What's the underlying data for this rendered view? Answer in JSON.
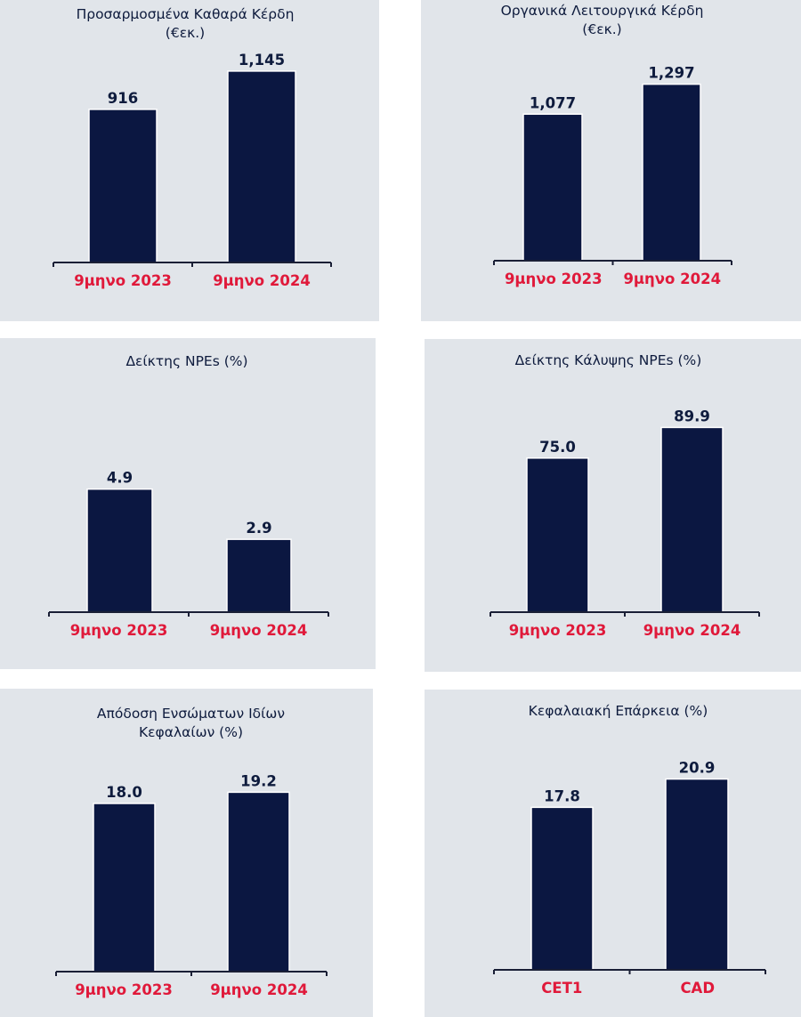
{
  "colors": {
    "panel_bg": "#e1e5ea",
    "bar": "#0b1741",
    "bar_outline": "#ffffff",
    "axis": "#1a1f36",
    "category_label": "#e0193a",
    "value_label": "#0e1b3d",
    "title": "#0e1b3d"
  },
  "chart_data": [
    {
      "type": "bar",
      "title": "Προσαρμοσμένα Καθαρά Κέρδη (€εκ.)",
      "title_lines": [
        "Προσαρμοσμένα Καθαρά Κέρδη",
        "(€εκ.)"
      ],
      "categories": [
        "9μηνο 2023",
        "9μηνο 2024"
      ],
      "values": [
        916,
        1145
      ],
      "value_labels": [
        "916",
        "1,145"
      ],
      "xlabel": "",
      "ylabel": "",
      "ylim": [
        0,
        1400
      ],
      "grid": false
    },
    {
      "type": "bar",
      "title": "Οργανικά Λειτουργικά Κέρδη (€εκ.)",
      "title_lines": [
        "Οργανικά Λειτουργικά Κέρδη",
        "(€εκ.)"
      ],
      "categories": [
        "9μηνο 2023",
        "9μηνο 2024"
      ],
      "values": [
        1077,
        1297
      ],
      "value_labels": [
        "1,077",
        "1,297"
      ],
      "xlabel": "",
      "ylabel": "",
      "ylim": [
        0,
        1700
      ],
      "grid": false
    },
    {
      "type": "bar",
      "title": "Δείκτης NPEs (%)",
      "title_lines": [
        "Δείκτης NPEs (%)"
      ],
      "categories": [
        "9μηνο 2023",
        "9μηνο 2024"
      ],
      "values": [
        4.9,
        2.9
      ],
      "value_labels": [
        "4.9",
        "2.9"
      ],
      "xlabel": "",
      "ylabel": "",
      "ylim": [
        0,
        9
      ],
      "grid": false
    },
    {
      "type": "bar",
      "title": "Δείκτης Κάλυψης NPEs (%)",
      "title_lines": [
        "Δείκτης Κάλυψης NPEs (%)"
      ],
      "categories": [
        "9μηνο 2023",
        "9μηνο 2024"
      ],
      "values": [
        75.0,
        89.9
      ],
      "value_labels": [
        "75.0",
        "89.9"
      ],
      "xlabel": "",
      "ylabel": "",
      "ylim": [
        0,
        110
      ],
      "grid": false
    },
    {
      "type": "bar",
      "title": "Απόδοση Ενσώματων Ιδίων Κεφαλαίων (%)",
      "title_lines": [
        "Απόδοση Ενσώματων Ιδίων",
        "Κεφαλαίων (%)"
      ],
      "categories": [
        "9μηνο 2023",
        "9μηνο 2024"
      ],
      "values": [
        18.0,
        19.2
      ],
      "value_labels": [
        "18.0",
        "19.2"
      ],
      "xlabel": "",
      "ylabel": "",
      "ylim": [
        0,
        22
      ],
      "grid": false
    },
    {
      "type": "bar",
      "title": "Κεφαλαιακή Επάρκεια (%)",
      "title_lines": [
        "Κεφαλαιακή Επάρκεια (%)"
      ],
      "categories": [
        "CET1",
        "CAD"
      ],
      "values": [
        17.8,
        20.9
      ],
      "value_labels": [
        "17.8",
        "20.9"
      ],
      "xlabel": "",
      "ylabel": "",
      "ylim": [
        0,
        23
      ],
      "grid": false
    }
  ]
}
